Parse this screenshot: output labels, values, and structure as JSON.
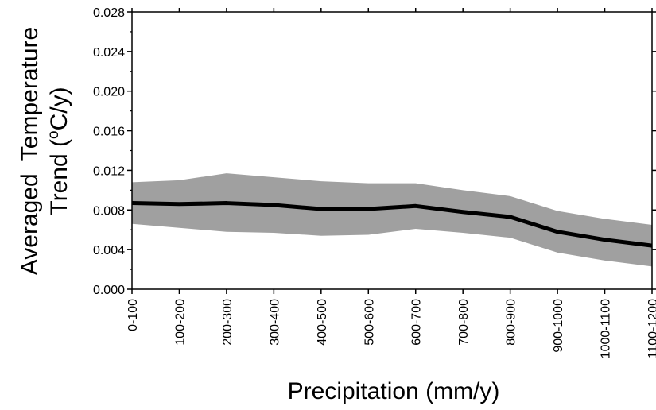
{
  "chart_data": {
    "type": "area",
    "categories": [
      "0-100",
      "100-200",
      "200-300",
      "300-400",
      "400-500",
      "500-600",
      "600-700",
      "700-800",
      "800-900",
      "900-1000",
      "1000-1100",
      "1100-1200"
    ],
    "series": [
      {
        "values": [
          0.0087,
          0.0086,
          0.0087,
          0.0085,
          0.0081,
          0.0081,
          0.0084,
          0.0078,
          0.0073,
          0.0058,
          0.005,
          0.0044
        ],
        "upper": [
          0.0108,
          0.011,
          0.0117,
          0.0113,
          0.0109,
          0.0107,
          0.0107,
          0.01,
          0.0094,
          0.0079,
          0.0071,
          0.0065
        ],
        "lower": [
          0.0066,
          0.0062,
          0.0058,
          0.0057,
          0.0054,
          0.0055,
          0.0061,
          0.0057,
          0.0052,
          0.0037,
          0.0029,
          0.0023
        ]
      }
    ],
    "xlabel": "Precipitation (mm/y)",
    "ylabel_line1": "Averaged  Temperature",
    "ylabel_line2_prefix": "Trend (",
    "ylabel_unit_sup": "o",
    "ylabel_unit_rest": "C/y)",
    "yticks": [
      "0.000",
      "0.004",
      "0.008",
      "0.012",
      "0.016",
      "0.020",
      "0.024",
      "0.028"
    ],
    "ylim": [
      0,
      0.028
    ],
    "grid": false,
    "colors": {
      "band": "#a0a0a0",
      "line": "#000000"
    }
  }
}
